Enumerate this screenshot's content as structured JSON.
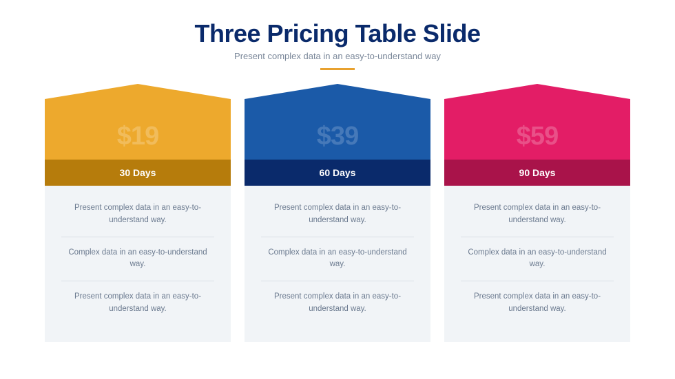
{
  "header": {
    "title": "Three Pricing Table Slide",
    "subtitle": "Present complex data in an easy-to-understand way",
    "accent_color": "#e8a12f"
  },
  "cards": [
    {
      "price": "$19",
      "label": "30 Days",
      "top_color": "#eda92d",
      "price_text_color": "#f6cd82",
      "label_bg_color": "#b67c0c",
      "features": [
        "Present complex data in an easy-to-understand way.",
        "Complex data in an easy-to-understand way.",
        "Present complex data in an easy-to-understand way."
      ]
    },
    {
      "price": "$39",
      "label": "60 Days",
      "top_color": "#1b5aa8",
      "price_text_color": "#6a94c7",
      "label_bg_color": "#0a2a6b",
      "features": [
        "Present complex data in an easy-to-understand way.",
        "Complex data in an easy-to-understand way.",
        "Present complex data in an easy-to-understand way."
      ]
    },
    {
      "price": "$59",
      "label": "90 Days",
      "top_color": "#e31d66",
      "price_text_color": "#ef7aa4",
      "label_bg_color": "#a9134a",
      "features": [
        "Present complex data in an easy-to-understand way.",
        "Complex data in an easy-to-understand way.",
        "Present complex data in an easy-to-understand way."
      ]
    }
  ],
  "styling": {
    "background": "#ffffff",
    "card_body_bg": "#f1f4f7",
    "feature_text_color": "#6b7a8f",
    "feature_divider": "#d9dfe6",
    "title_color": "#0a2a6b",
    "subtitle_color": "#7a8799"
  }
}
